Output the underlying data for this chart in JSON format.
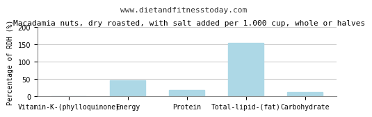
{
  "title": "Macadamia nuts, dry roasted, with salt added per 1.000 cup, whole or halves",
  "subtitle": "www.dietandfitnesstoday.com",
  "categories": [
    "Vitamin-K-(phylloquinone)",
    "Energy",
    "Protein",
    "Total-lipid-(fat)",
    "Carbohydrate"
  ],
  "values": [
    0,
    46,
    18,
    155,
    13
  ],
  "bar_color": "#add8e6",
  "ylabel": "Percentage of RDH (%)",
  "ylim": [
    0,
    200
  ],
  "yticks": [
    0,
    50,
    100,
    150,
    200
  ],
  "background_color": "#ffffff",
  "grid_color": "#cccccc",
  "title_fontsize": 8,
  "subtitle_fontsize": 8,
  "tick_fontsize": 7,
  "ylabel_fontsize": 7
}
